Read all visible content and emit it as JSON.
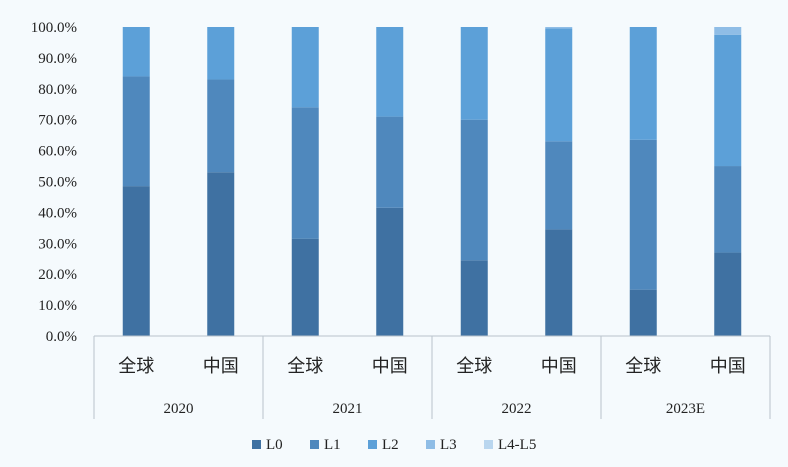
{
  "chart_data": {
    "type": "bar",
    "stacked": true,
    "percent": true,
    "groups": [
      "2020",
      "2021",
      "2022",
      "2023E"
    ],
    "categories": [
      "全球",
      "中国",
      "全球",
      "中国",
      "全球",
      "中国",
      "全球",
      "中国"
    ],
    "series": [
      {
        "name": "L0",
        "color": "#3f71a2",
        "values": [
          48.5,
          53,
          31.5,
          41.5,
          24.5,
          34.5,
          15,
          27
        ]
      },
      {
        "name": "L1",
        "color": "#4f88bd",
        "values": [
          35.5,
          30,
          42.5,
          29.5,
          45.5,
          28.5,
          48.5,
          28
        ]
      },
      {
        "name": "L2",
        "color": "#5ca0d8",
        "values": [
          16,
          17,
          26,
          29,
          30,
          36.5,
          36.5,
          42.5
        ]
      },
      {
        "name": "L3",
        "color": "#8fbde6",
        "values": [
          0,
          0,
          0,
          0,
          0,
          0.5,
          0,
          2.5
        ]
      },
      {
        "name": "L4-L5",
        "color": "#b9d6ef",
        "values": [
          0,
          0,
          0,
          0,
          0,
          0,
          0,
          0
        ]
      }
    ],
    "yticks": [
      "0.0%",
      "10.0%",
      "20.0%",
      "30.0%",
      "40.0%",
      "50.0%",
      "60.0%",
      "70.0%",
      "80.0%",
      "90.0%",
      "100.0%"
    ],
    "ylim": [
      0,
      100
    ],
    "grid": false,
    "legend_position": "bottom"
  }
}
